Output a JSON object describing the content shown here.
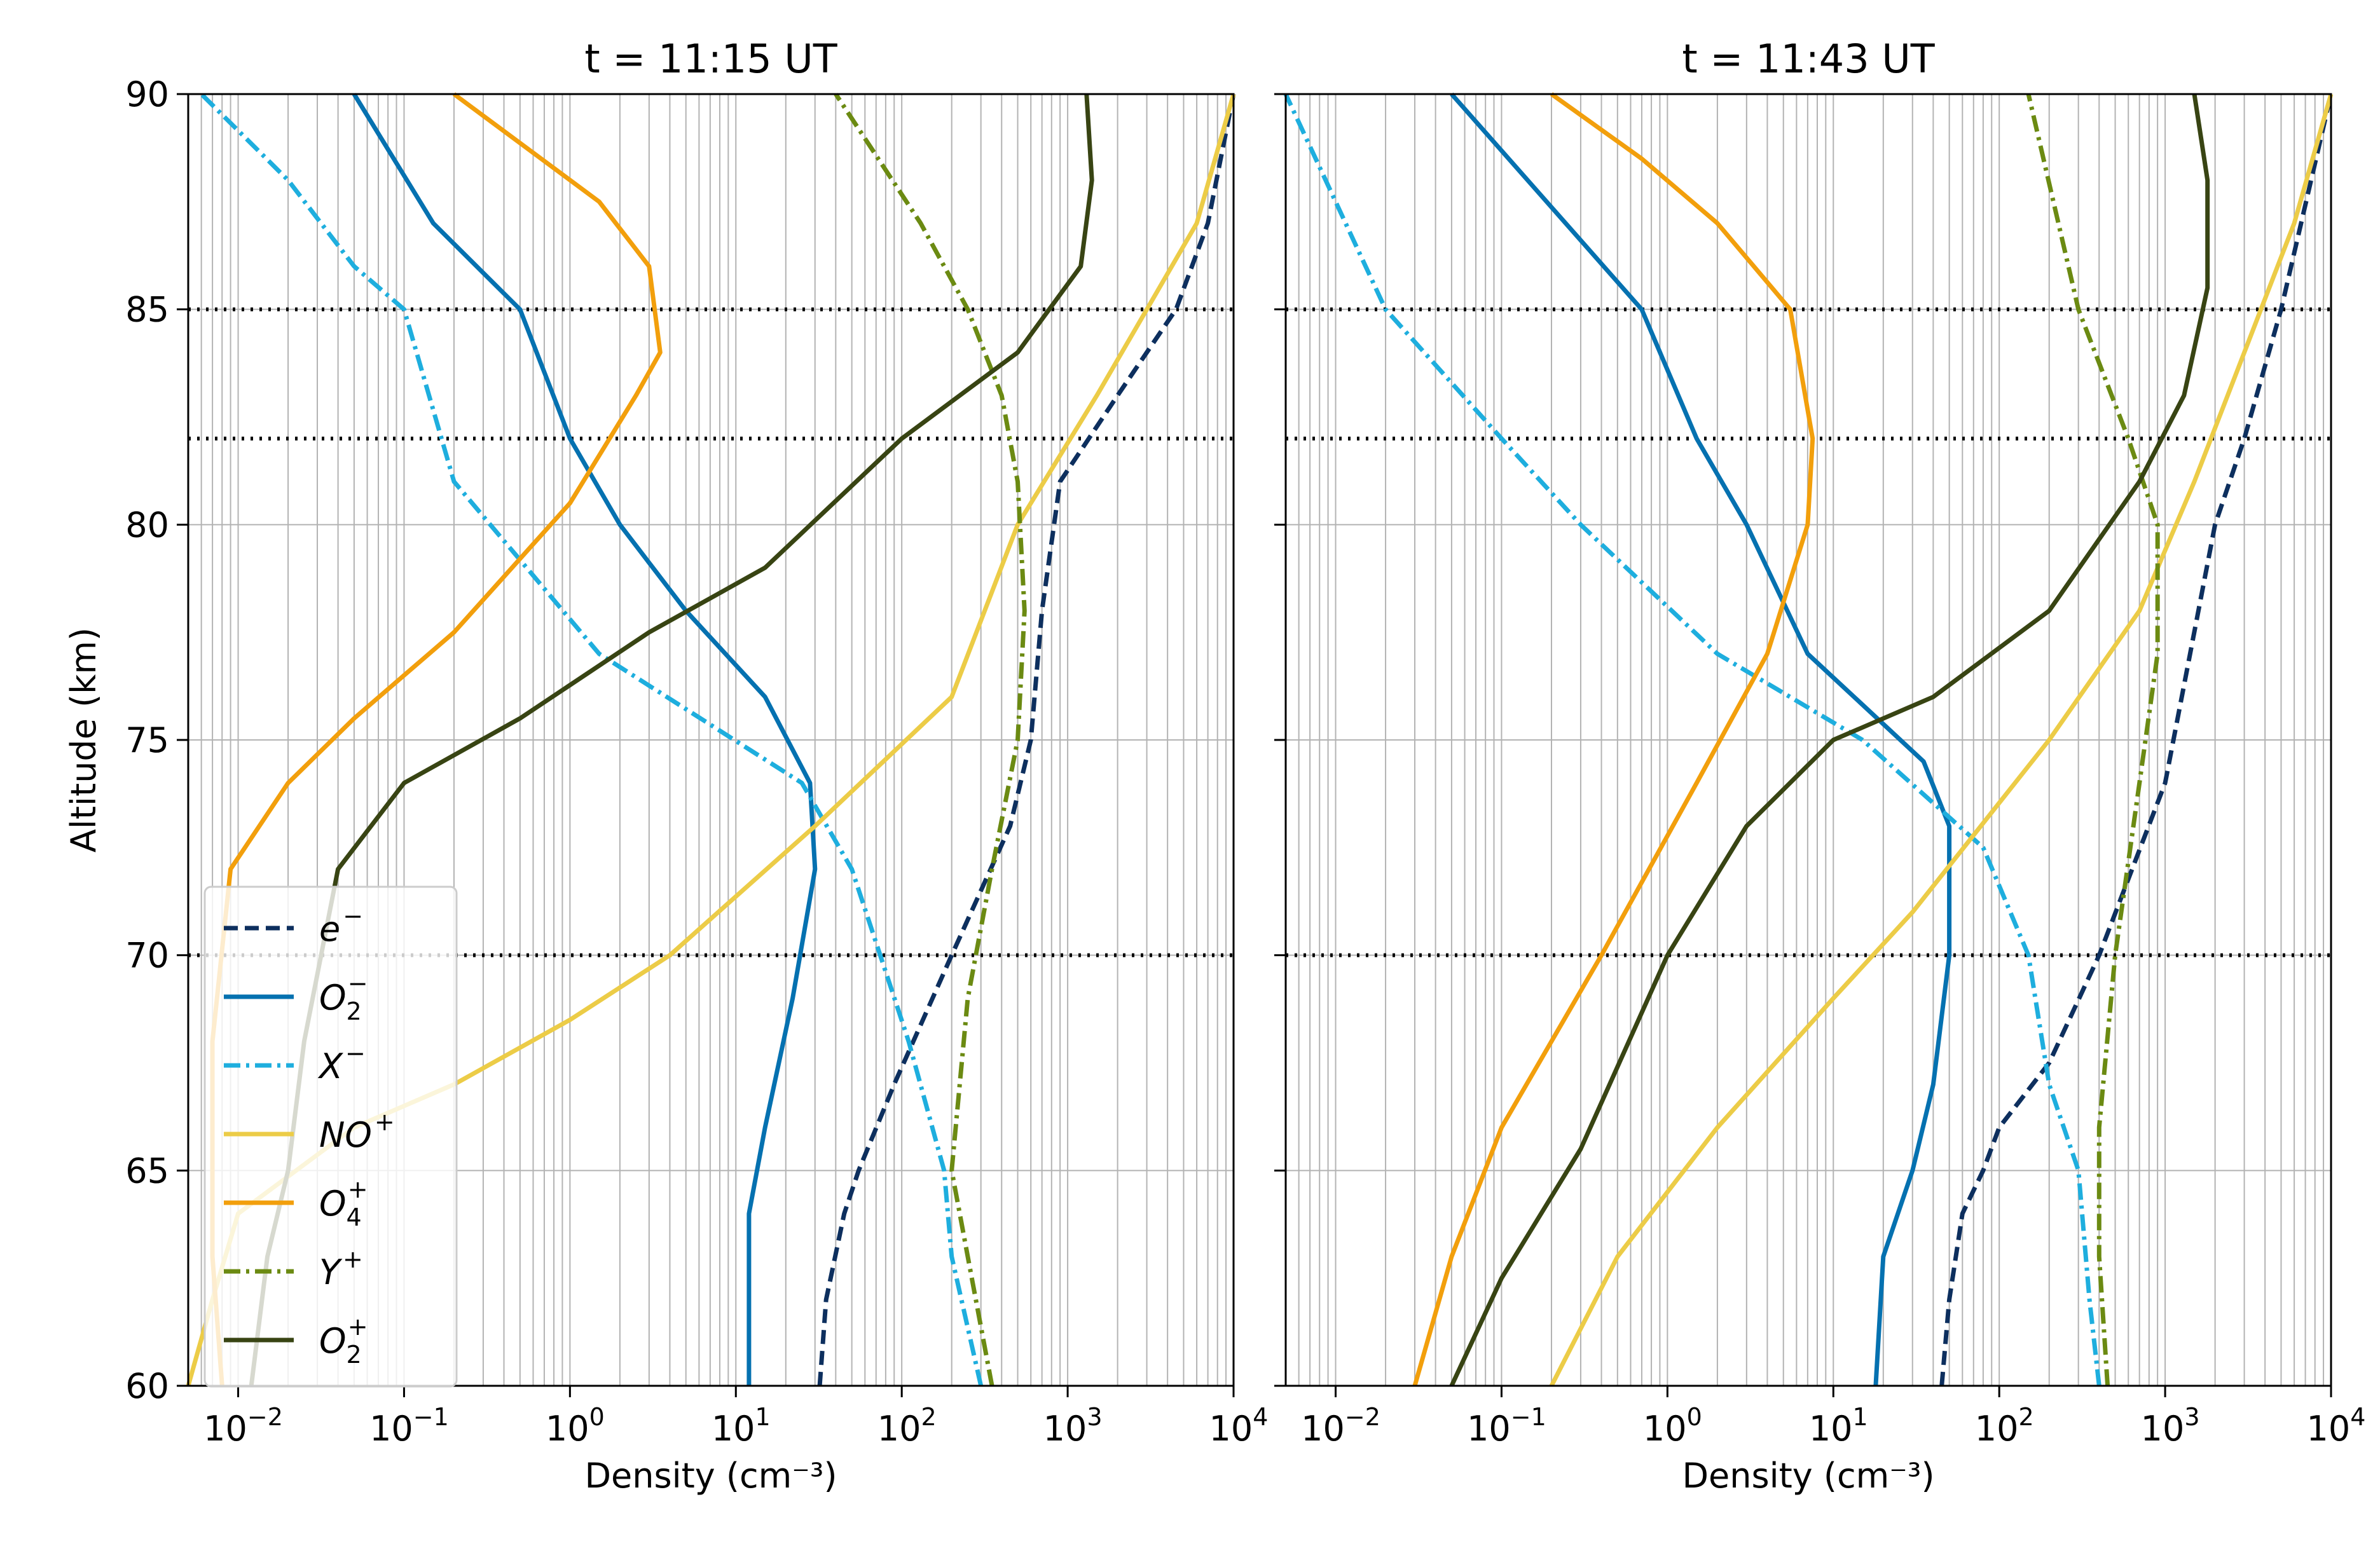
{
  "colors": {
    "electron": "#0d2f5e",
    "O2_minus": "#0571b0",
    "X_minus": "#1eaede",
    "NO_plus": "#eccc47",
    "O4_plus": "#f29f0c",
    "Y_plus": "#6b8a12",
    "O2_plus": "#384413",
    "grid": "#b3b3b3",
    "marker_line": "#000000"
  },
  "legend": {
    "placement": "lower-left",
    "entries": [
      {
        "key": "e",
        "base": "e",
        "sup": "−",
        "sub": "",
        "color": "#0d2f5e",
        "style": "dashed"
      },
      {
        "key": "O2m",
        "base": "O",
        "sup": "−",
        "sub": "2",
        "color": "#0571b0",
        "style": "solid"
      },
      {
        "key": "Xm",
        "base": "X",
        "sup": "−",
        "sub": "",
        "color": "#1eaede",
        "style": "dashdot"
      },
      {
        "key": "NOp",
        "base": "NO",
        "sup": "+",
        "sub": "",
        "color": "#eccc47",
        "style": "solid"
      },
      {
        "key": "O4p",
        "base": "O",
        "sup": "+",
        "sub": "4",
        "color": "#f29f0c",
        "style": "solid"
      },
      {
        "key": "Yp",
        "base": "Y",
        "sup": "+",
        "sub": "",
        "color": "#6b8a12",
        "style": "dashdot"
      },
      {
        "key": "O2p",
        "base": "O",
        "sup": "+",
        "sub": "2",
        "color": "#384413",
        "style": "solid"
      }
    ]
  },
  "chart_data": [
    {
      "type": "line",
      "title": "t = 11:15 UT",
      "xlabel": "Density (cm⁻³)",
      "ylabel": "Altitude (km)",
      "xscale": "log",
      "xlim": [
        0.005,
        10000
      ],
      "ylim": [
        60,
        90
      ],
      "xticks": [
        {
          "v": 0.01,
          "b": "10",
          "e": "−2"
        },
        {
          "v": 0.1,
          "b": "10",
          "e": "−1"
        },
        {
          "v": 1,
          "b": "10",
          "e": "0"
        },
        {
          "v": 10,
          "b": "10",
          "e": "1"
        },
        {
          "v": 100,
          "b": "10",
          "e": "2"
        },
        {
          "v": 1000,
          "b": "10",
          "e": "3"
        },
        {
          "v": 10000,
          "b": "10",
          "e": "4"
        }
      ],
      "yticks": [
        60,
        65,
        70,
        75,
        80,
        85,
        90
      ],
      "ytick_labels": [
        "60",
        "65",
        "70",
        "75",
        "80",
        "85",
        "90"
      ],
      "grid": true,
      "hlines": [
        70,
        82,
        85
      ],
      "series": [
        {
          "name": "e⁻",
          "key": "e",
          "x": [
            32,
            35,
            45,
            55,
            90,
            200,
            450,
            600,
            700,
            900,
            2000,
            4500,
            7000,
            10000
          ],
          "y": [
            60,
            62,
            64,
            65,
            67,
            70,
            73,
            75,
            78,
            81,
            83,
            85,
            87,
            90
          ]
        },
        {
          "name": "O₂⁻",
          "key": "O2m",
          "x": [
            12,
            12,
            15,
            22,
            30,
            28,
            15,
            5,
            2,
            1,
            0.5,
            0.15,
            0.05
          ],
          "y": [
            60,
            64,
            66,
            69,
            72,
            74,
            76,
            78,
            80,
            82,
            85,
            87,
            90
          ]
        },
        {
          "name": "X⁻",
          "key": "Xm",
          "x": [
            300,
            200,
            180,
            110,
            50,
            25,
            1.5,
            0.2,
            0.1,
            0.05,
            0.02,
            0.006
          ],
          "y": [
            60,
            63,
            65,
            68,
            72,
            74,
            77,
            81,
            85,
            86,
            88,
            90
          ]
        },
        {
          "name": "NO⁺",
          "key": "NOp",
          "x": [
            0.005,
            0.007,
            0.01,
            0.05,
            0.2,
            1,
            4,
            30,
            200,
            500,
            1500,
            3000,
            6000,
            10000
          ],
          "y": [
            60,
            62,
            64,
            66,
            67,
            68.5,
            70,
            73,
            76,
            80,
            83,
            85,
            87,
            90
          ]
        },
        {
          "name": "O₄⁺",
          "key": "O4p",
          "x": [
            0.008,
            0.007,
            0.007,
            0.009,
            0.02,
            0.05,
            0.2,
            1,
            2.5,
            3.5,
            3,
            1.5,
            0.2
          ],
          "y": [
            60,
            63,
            68,
            72,
            74,
            75.5,
            77.5,
            80.5,
            83,
            84,
            86,
            87.5,
            90
          ]
        },
        {
          "name": "Y⁺",
          "key": "Yp",
          "x": [
            350,
            250,
            200,
            250,
            350,
            500,
            550,
            500,
            400,
            250,
            130,
            40
          ],
          "y": [
            60,
            63,
            65,
            69,
            72,
            75,
            78,
            81,
            83,
            85,
            87,
            90
          ]
        },
        {
          "name": "O₂⁺",
          "key": "O2p",
          "x": [
            0.012,
            0.015,
            0.02,
            0.025,
            0.04,
            0.1,
            0.5,
            3,
            15,
            100,
            500,
            1200,
            1400,
            1300
          ],
          "y": [
            60,
            63,
            65,
            68,
            72,
            74,
            75.5,
            77.5,
            79,
            82,
            84,
            86,
            88,
            90
          ]
        }
      ]
    },
    {
      "type": "line",
      "title": "t = 11:43 UT",
      "xlabel": "Density (cm⁻³)",
      "ylabel": "",
      "xscale": "log",
      "xlim": [
        0.005,
        10000
      ],
      "ylim": [
        60,
        90
      ],
      "xticks": [
        {
          "v": 0.01,
          "b": "10",
          "e": "−2"
        },
        {
          "v": 0.1,
          "b": "10",
          "e": "−1"
        },
        {
          "v": 1,
          "b": "10",
          "e": "0"
        },
        {
          "v": 10,
          "b": "10",
          "e": "1"
        },
        {
          "v": 100,
          "b": "10",
          "e": "2"
        },
        {
          "v": 1000,
          "b": "10",
          "e": "3"
        },
        {
          "v": 10000,
          "b": "10",
          "e": "4"
        }
      ],
      "yticks": [
        60,
        65,
        70,
        75,
        80,
        85,
        90
      ],
      "ytick_labels": [
        "",
        "",
        "",
        "",
        "",
        "",
        ""
      ],
      "grid": true,
      "hlines": [
        70,
        82,
        85
      ],
      "series": [
        {
          "name": "e⁻",
          "key": "e",
          "x": [
            45,
            50,
            60,
            80,
            100,
            200,
            400,
            1000,
            2000,
            3000,
            5000,
            10000
          ],
          "y": [
            60,
            62,
            64,
            65,
            66,
            67.5,
            70,
            74,
            80,
            82,
            85,
            90
          ]
        },
        {
          "name": "O₂⁻",
          "key": "O2m",
          "x": [
            18,
            20,
            30,
            40,
            50,
            50,
            35,
            7,
            3,
            1.5,
            0.7,
            0.05
          ],
          "y": [
            60,
            63,
            65,
            67,
            70,
            73,
            74.5,
            77,
            80,
            82,
            85,
            90
          ]
        },
        {
          "name": "X⁻",
          "key": "Xm",
          "x": [
            400,
            350,
            300,
            200,
            150,
            80,
            15,
            2,
            0.3,
            0.1,
            0.02,
            0.005
          ],
          "y": [
            60,
            62,
            65,
            67,
            70,
            72.5,
            75,
            77,
            80,
            82,
            85,
            90
          ]
        },
        {
          "name": "NO⁺",
          "key": "NOp",
          "x": [
            0.2,
            0.5,
            2,
            10,
            30,
            200,
            700,
            1500,
            3000,
            6000,
            10000
          ],
          "y": [
            60,
            63,
            66,
            69,
            71,
            75,
            78,
            81,
            84,
            87,
            90
          ]
        },
        {
          "name": "O₄⁺",
          "key": "O4p",
          "x": [
            0.03,
            0.05,
            0.1,
            0.4,
            1.5,
            4,
            7,
            7.5,
            5.5,
            2,
            0.7,
            0.2
          ],
          "y": [
            60,
            63,
            66,
            70,
            74,
            77,
            80,
            82,
            85,
            87,
            88.5,
            90
          ]
        },
        {
          "name": "Y⁺",
          "key": "Yp",
          "x": [
            450,
            400,
            400,
            500,
            700,
            900,
            900,
            600,
            300,
            150
          ],
          "y": [
            60,
            63,
            66,
            70,
            74,
            77,
            80,
            82,
            85,
            90
          ]
        },
        {
          "name": "O₂⁺",
          "key": "O2p",
          "x": [
            0.05,
            0.1,
            0.3,
            1,
            3,
            10,
            40,
            200,
            700,
            1300,
            1800,
            1800,
            1500
          ],
          "y": [
            60,
            62.5,
            65.5,
            70,
            73,
            75,
            76,
            78,
            81,
            83,
            85.5,
            88,
            90
          ]
        }
      ]
    }
  ]
}
